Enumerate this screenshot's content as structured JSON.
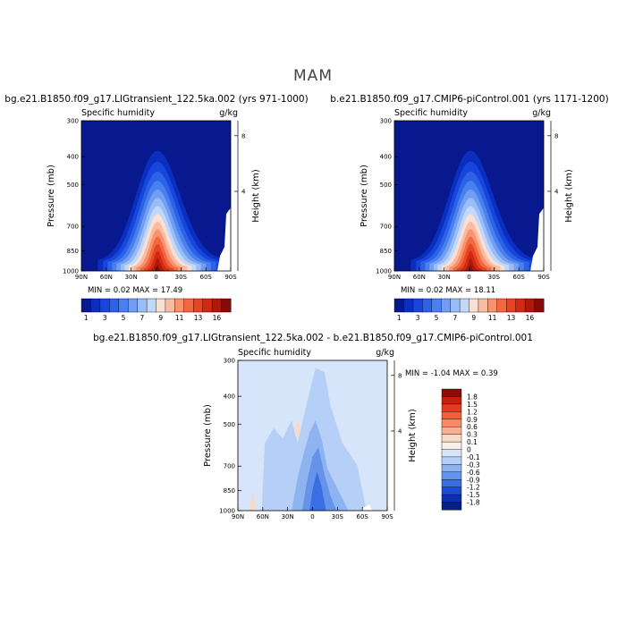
{
  "figure": {
    "season": "MAM"
  },
  "chart_data": [
    {
      "type": "heatmap",
      "title": "bg.e21.B1850.f09_g17.LIGtransient_122.5ka.002 (yrs 971-1000)",
      "variable": "Specific humidity",
      "units": "g/kg",
      "xlabel": "",
      "ylabel": "Pressure (mb)",
      "y2label": "Height (km)",
      "x_ticks": [
        "90N",
        "60N",
        "30N",
        "0",
        "30S",
        "60S",
        "90S"
      ],
      "y_ticks": [
        300,
        400,
        500,
        700,
        850,
        1000
      ],
      "y2_ticks": [
        8,
        4
      ],
      "ylim": [
        1000,
        300
      ],
      "y_scale": "log",
      "min_label": "MIN =",
      "min": "0.02",
      "max_label": "MAX =",
      "max": "17.49",
      "colorbar": {
        "orientation": "horizontal",
        "labels": [
          "1",
          "3",
          "5",
          "7",
          "9",
          "11",
          "13",
          "16"
        ]
      }
    },
    {
      "type": "heatmap",
      "title": "b.e21.B1850.f09_g17.CMIP6-piControl.001 (yrs 1171-1200)",
      "variable": "Specific humidity",
      "units": "g/kg",
      "xlabel": "",
      "ylabel": "Pressure (mb)",
      "y2label": "Height (km)",
      "x_ticks": [
        "90N",
        "60N",
        "30N",
        "0",
        "30S",
        "60S",
        "90S"
      ],
      "y_ticks": [
        300,
        400,
        500,
        700,
        850,
        1000
      ],
      "y2_ticks": [
        8,
        4
      ],
      "ylim": [
        1000,
        300
      ],
      "y_scale": "log",
      "min_label": "MIN =",
      "min": "0.02",
      "max_label": "MAX =",
      "max": "18.11",
      "colorbar": {
        "orientation": "horizontal",
        "labels": [
          "1",
          "3",
          "5",
          "7",
          "9",
          "11",
          "13",
          "16"
        ]
      }
    },
    {
      "type": "heatmap",
      "title": "bg.e21.B1850.f09_g17.LIGtransient_122.5ka.002 - b.e21.B1850.f09_g17.CMIP6-piControl.001",
      "variable": "Specific humidity",
      "units": "g/kg",
      "xlabel": "",
      "ylabel": "Pressure (mb)",
      "y2label": "Height (km)",
      "x_ticks": [
        "90N",
        "60N",
        "30N",
        "0",
        "30S",
        "60S",
        "90S"
      ],
      "y_ticks": [
        300,
        400,
        500,
        700,
        850,
        1000
      ],
      "y2_ticks": [
        8,
        4
      ],
      "ylim": [
        1000,
        300
      ],
      "y_scale": "log",
      "min_label": "MIN =",
      "min": "-1.04",
      "max_label": "MAX =",
      "max": "0.39",
      "colorbar": {
        "orientation": "vertical",
        "labels": [
          "1.8",
          "1.5",
          "1.2",
          "0.9",
          "0.6",
          "0.3",
          "0.1",
          "0",
          "-0.1",
          "-0.3",
          "-0.6",
          "-0.9",
          "-1.2",
          "-1.5",
          "-1.8"
        ]
      }
    }
  ],
  "colors": {
    "abs_palette": [
      "#08188f",
      "#0a2fc0",
      "#1846dc",
      "#2c62e6",
      "#4a7fee",
      "#6f9ef3",
      "#98bdf7",
      "#c2d8fa",
      "#fae0d2",
      "#f9bba1",
      "#f7936f",
      "#f2683f",
      "#e74423",
      "#d02a14",
      "#ad1a0c",
      "#860b06"
    ],
    "diff_palette": [
      "#8c0b06",
      "#c81e10",
      "#e63c1c",
      "#f0603a",
      "#f48a66",
      "#f6b193",
      "#f9d8c6",
      "#f8efe6",
      "#d6e5fa",
      "#b5cff6",
      "#8eb3f1",
      "#6593ea",
      "#3a6ee2",
      "#1c4cd4",
      "#0a30b0",
      "#061e8a"
    ]
  }
}
